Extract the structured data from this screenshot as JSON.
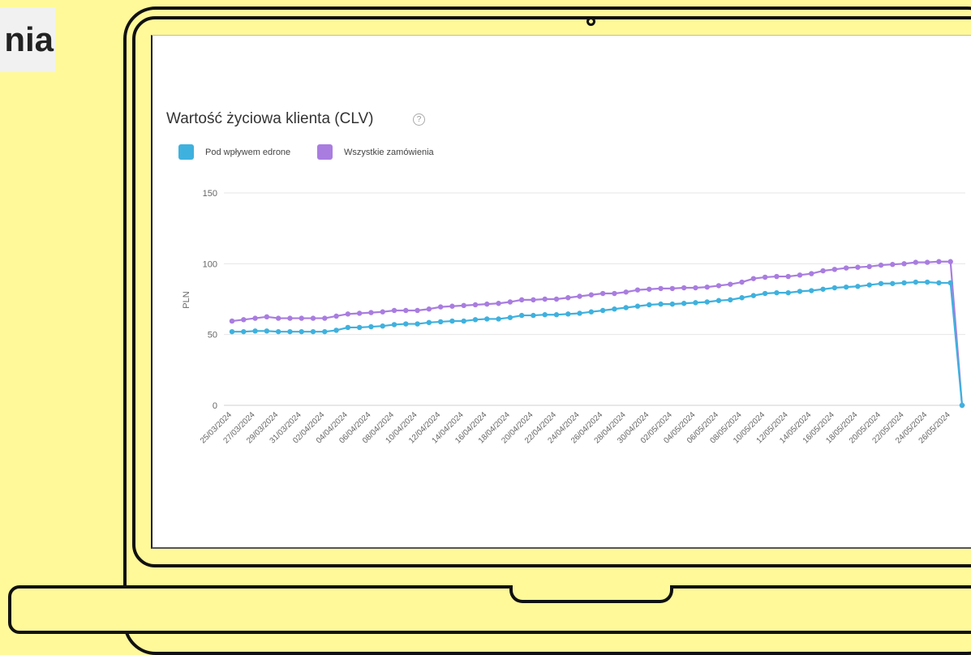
{
  "slide": {
    "title_fragment": "nia"
  },
  "chart_data": {
    "type": "line",
    "title": "Wartość życiowa klienta (CLV)",
    "ylabel": "PLN",
    "xlabel": "",
    "ylim": [
      0,
      150
    ],
    "yticks": [
      0,
      50,
      100,
      150
    ],
    "grid": true,
    "legend_position": "top-left",
    "x": [
      "25/03/2024",
      "26/03/2024",
      "27/03/2024",
      "28/03/2024",
      "29/03/2024",
      "30/03/2024",
      "31/03/2024",
      "01/04/2024",
      "02/04/2024",
      "03/04/2024",
      "04/04/2024",
      "05/04/2024",
      "06/04/2024",
      "07/04/2024",
      "08/04/2024",
      "09/04/2024",
      "10/04/2024",
      "11/04/2024",
      "12/04/2024",
      "13/04/2024",
      "14/04/2024",
      "15/04/2024",
      "16/04/2024",
      "17/04/2024",
      "18/04/2024",
      "19/04/2024",
      "20/04/2024",
      "21/04/2024",
      "22/04/2024",
      "23/04/2024",
      "24/04/2024",
      "25/04/2024",
      "26/04/2024",
      "27/04/2024",
      "28/04/2024",
      "29/04/2024",
      "30/04/2024",
      "01/05/2024",
      "02/05/2024",
      "03/05/2024",
      "04/05/2024",
      "05/05/2024",
      "06/05/2024",
      "07/05/2024",
      "08/05/2024",
      "09/05/2024",
      "10/05/2024",
      "11/05/2024",
      "12/05/2024",
      "13/05/2024",
      "14/05/2024",
      "15/05/2024",
      "16/05/2024",
      "17/05/2024",
      "18/05/2024",
      "19/05/2024",
      "20/05/2024",
      "21/05/2024",
      "22/05/2024",
      "23/05/2024",
      "24/05/2024",
      "25/05/2024",
      "26/05/2024",
      "27/05/2024"
    ],
    "xtick_labels": [
      "25/03/2024",
      "27/03/2024",
      "29/03/2024",
      "31/03/2024",
      "02/04/2024",
      "04/04/2024",
      "06/04/2024",
      "08/04/2024",
      "10/04/2024",
      "12/04/2024",
      "14/04/2024",
      "16/04/2024",
      "18/04/2024",
      "20/04/2024",
      "22/04/2024",
      "24/04/2024",
      "26/04/2024",
      "28/04/2024",
      "30/04/2024",
      "02/05/2024",
      "04/05/2024",
      "06/05/2024",
      "08/05/2024",
      "10/05/2024",
      "12/05/2024",
      "14/05/2024",
      "16/05/2024",
      "18/05/2024",
      "20/05/2024",
      "22/05/2024",
      "24/05/2024",
      "26/05/2024"
    ],
    "series": [
      {
        "name": "Pod wpływem edrone",
        "color": "#3fb1de",
        "values": [
          52,
          52,
          52.5,
          52.5,
          52,
          52,
          52,
          52,
          52,
          53,
          55,
          55,
          55.5,
          56,
          57,
          57.5,
          57.5,
          58.5,
          59,
          59.5,
          59.5,
          60.5,
          61,
          61,
          62,
          63.5,
          63.5,
          64,
          64,
          64.5,
          65,
          66,
          67,
          68,
          69,
          70,
          71,
          71.5,
          71.5,
          72,
          72.5,
          73,
          74,
          74.5,
          76,
          77.5,
          79,
          79.5,
          79.5,
          80.5,
          81,
          82,
          83,
          83.5,
          84,
          85,
          86,
          86,
          86.5,
          87,
          87,
          86.5,
          86.5,
          0
        ]
      },
      {
        "name": "Wszystkie zamówienia",
        "color": "#a97de0",
        "values": [
          59.5,
          60.5,
          61.5,
          62.5,
          61.5,
          61.5,
          61.5,
          61.5,
          61.5,
          63,
          64.5,
          65,
          65.5,
          66,
          67,
          67,
          67,
          68,
          69.5,
          70,
          70.5,
          71,
          71.5,
          72,
          73,
          74.5,
          74.5,
          75,
          75,
          76,
          77,
          78,
          79,
          79,
          80,
          81.5,
          82,
          82.5,
          82.5,
          83,
          83,
          83.5,
          84.5,
          85.5,
          87,
          89.5,
          90.5,
          91,
          91,
          92,
          93,
          95,
          96,
          97,
          97.5,
          98,
          99,
          99.5,
          100,
          101,
          101,
          101.5,
          101.5,
          0
        ]
      }
    ]
  }
}
